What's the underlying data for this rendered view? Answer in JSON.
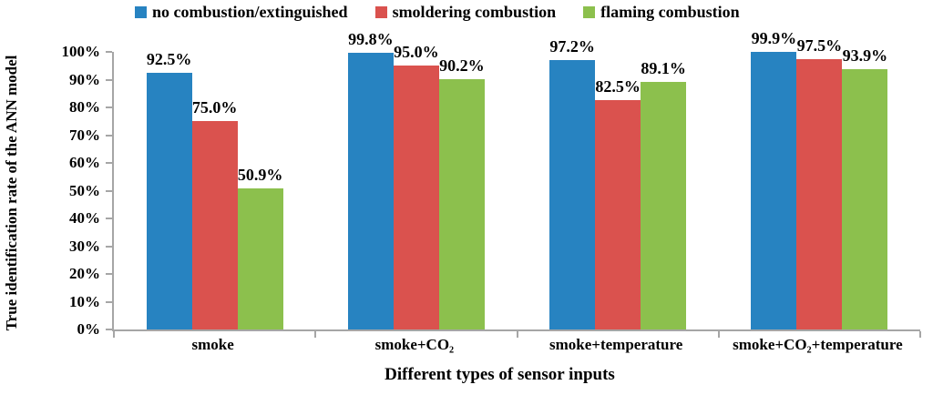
{
  "chart_data": {
    "type": "bar",
    "title": "",
    "categories": [
      "smoke",
      "smoke+CO₂",
      "smoke+temperature",
      "smoke+CO₂+temperature"
    ],
    "series": [
      {
        "name": "no combustion/extinguished",
        "color": "#2783C1",
        "values": [
          92.5,
          99.8,
          97.2,
          99.9
        ],
        "labels": [
          "92.5%",
          "99.8%",
          "97.2%",
          "99.9%"
        ]
      },
      {
        "name": "smoldering combustion",
        "color": "#DA524E",
        "values": [
          75.0,
          95.0,
          82.5,
          97.5
        ],
        "labels": [
          "75.0%",
          "95.0%",
          "82.5%",
          "97.5%"
        ]
      },
      {
        "name": "flaming combustion",
        "color": "#8CC04D",
        "values": [
          50.9,
          90.2,
          89.1,
          93.9
        ],
        "labels": [
          "50.9%",
          "90.2%",
          "89.1%",
          "93.9%"
        ]
      }
    ],
    "xlabel": "Different types of sensor inputs",
    "ylabel": "True identification rate of the ANN model",
    "ylim": [
      0,
      100
    ],
    "ytick_step": 10,
    "ytick_labels": [
      "0%",
      "10%",
      "20%",
      "30%",
      "40%",
      "50%",
      "60%",
      "70%",
      "80%",
      "90%",
      "100%"
    ],
    "grid": false,
    "legend_position": "top",
    "axis_color": "#A6A6A6",
    "label_color": "#000000"
  }
}
